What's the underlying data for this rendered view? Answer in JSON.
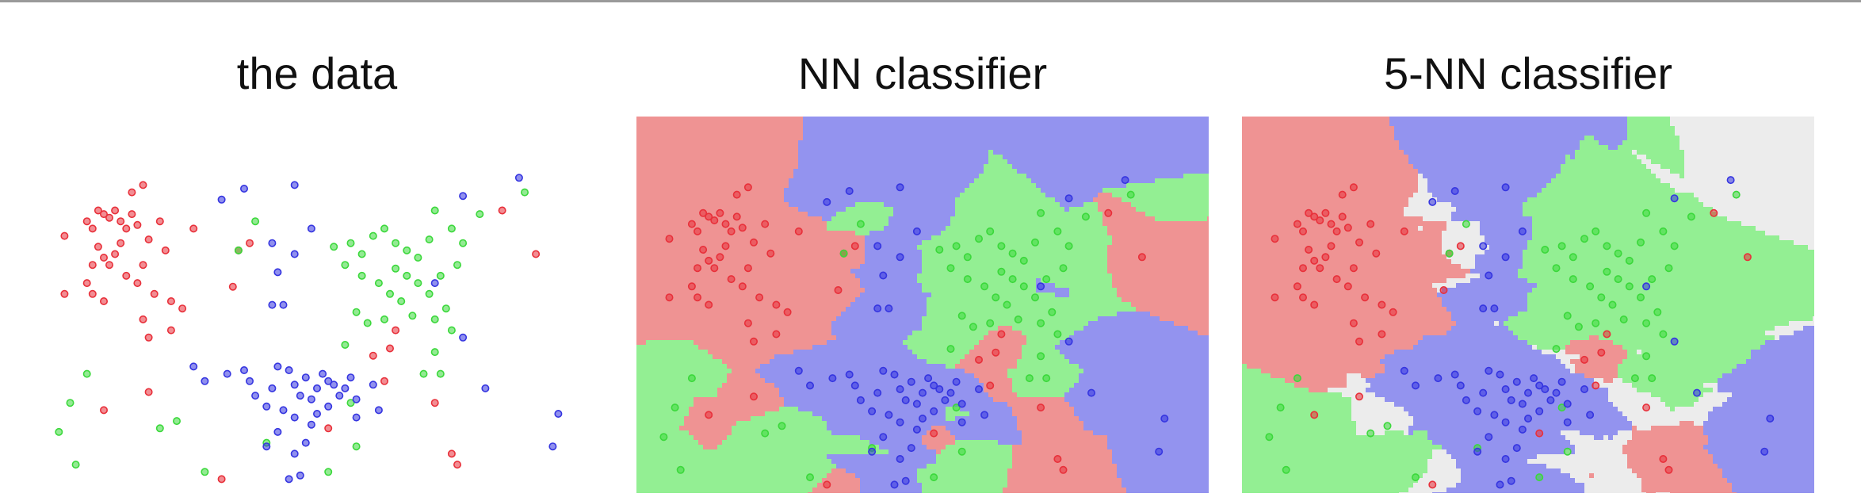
{
  "panels": [
    {
      "title": "the data"
    },
    {
      "title": "NN classifier"
    },
    {
      "title": "5-NN classifier"
    }
  ],
  "colors": {
    "red": "#e8303a",
    "green": "#3bd83b",
    "blue": "#3535e0",
    "region_red": "#ef9393",
    "region_green": "#93ef93",
    "region_blue": "#9393ef",
    "region_undecided": "#ececec"
  },
  "chart_data": [
    {
      "type": "scatter",
      "title": "the data",
      "series": [
        {
          "points": [
            [
              0.05,
              0.68
            ],
            [
              0.11,
              0.75
            ],
            [
              0.12,
              0.74
            ],
            [
              0.09,
              0.72
            ],
            [
              0.1,
              0.7
            ],
            [
              0.13,
              0.73
            ],
            [
              0.14,
              0.75
            ],
            [
              0.15,
              0.72
            ],
            [
              0.16,
              0.7
            ],
            [
              0.17,
              0.74
            ],
            [
              0.18,
              0.71
            ],
            [
              0.11,
              0.65
            ],
            [
              0.12,
              0.62
            ],
            [
              0.13,
              0.6
            ],
            [
              0.14,
              0.63
            ],
            [
              0.15,
              0.66
            ],
            [
              0.1,
              0.6
            ],
            [
              0.09,
              0.55
            ],
            [
              0.1,
              0.52
            ],
            [
              0.12,
              0.5
            ],
            [
              0.16,
              0.57
            ],
            [
              0.18,
              0.55
            ],
            [
              0.19,
              0.6
            ],
            [
              0.2,
              0.67
            ],
            [
              0.22,
              0.72
            ],
            [
              0.23,
              0.64
            ],
            [
              0.21,
              0.52
            ],
            [
              0.24,
              0.5
            ],
            [
              0.19,
              0.45
            ],
            [
              0.2,
              0.4
            ],
            [
              0.24,
              0.42
            ],
            [
              0.26,
              0.48
            ],
            [
              0.28,
              0.7
            ],
            [
              0.36,
              0.64
            ],
            [
              0.38,
              0.66
            ],
            [
              0.05,
              0.52
            ],
            [
              0.35,
              0.54
            ],
            [
              0.52,
              0.15
            ],
            [
              0.6,
              0.35
            ],
            [
              0.62,
              0.28
            ],
            [
              0.63,
              0.37
            ],
            [
              0.64,
              0.42
            ],
            [
              0.71,
              0.22
            ],
            [
              0.75,
              0.05
            ],
            [
              0.74,
              0.08
            ],
            [
              0.12,
              0.2
            ],
            [
              0.33,
              0.01
            ],
            [
              0.2,
              0.25
            ],
            [
              0.89,
              0.63
            ],
            [
              0.83,
              0.75
            ],
            [
              0.19,
              0.82
            ],
            [
              0.17,
              0.8
            ]
          ]
        },
        {
          "points": [
            [
              0.36,
              0.64
            ],
            [
              0.39,
              0.72
            ],
            [
              0.53,
              0.65
            ],
            [
              0.56,
              0.66
            ],
            [
              0.55,
              0.6
            ],
            [
              0.58,
              0.63
            ],
            [
              0.6,
              0.68
            ],
            [
              0.62,
              0.7
            ],
            [
              0.64,
              0.66
            ],
            [
              0.66,
              0.64
            ],
            [
              0.68,
              0.62
            ],
            [
              0.7,
              0.67
            ],
            [
              0.71,
              0.75
            ],
            [
              0.58,
              0.57
            ],
            [
              0.61,
              0.55
            ],
            [
              0.64,
              0.59
            ],
            [
              0.66,
              0.57
            ],
            [
              0.63,
              0.52
            ],
            [
              0.65,
              0.5
            ],
            [
              0.68,
              0.55
            ],
            [
              0.7,
              0.52
            ],
            [
              0.72,
              0.57
            ],
            [
              0.67,
              0.46
            ],
            [
              0.71,
              0.45
            ],
            [
              0.74,
              0.42
            ],
            [
              0.57,
              0.47
            ],
            [
              0.59,
              0.44
            ],
            [
              0.62,
              0.45
            ],
            [
              0.73,
              0.48
            ],
            [
              0.75,
              0.6
            ],
            [
              0.76,
              0.66
            ],
            [
              0.74,
              0.7
            ],
            [
              0.79,
              0.74
            ],
            [
              0.87,
              0.8
            ],
            [
              0.72,
              0.3
            ],
            [
              0.69,
              0.3
            ],
            [
              0.71,
              0.36
            ],
            [
              0.55,
              0.38
            ],
            [
              0.09,
              0.3
            ],
            [
              0.04,
              0.14
            ],
            [
              0.07,
              0.05
            ],
            [
              0.06,
              0.22
            ],
            [
              0.25,
              0.17
            ],
            [
              0.22,
              0.15
            ],
            [
              0.3,
              0.03
            ],
            [
              0.41,
              0.11
            ],
            [
              0.56,
              0.22
            ],
            [
              0.57,
              0.1
            ],
            [
              0.52,
              0.03
            ]
          ]
        },
        {
          "points": [
            [
              0.33,
              0.78
            ],
            [
              0.37,
              0.81
            ],
            [
              0.46,
              0.82
            ],
            [
              0.42,
              0.66
            ],
            [
              0.49,
              0.7
            ],
            [
              0.46,
              0.63
            ],
            [
              0.43,
              0.58
            ],
            [
              0.44,
              0.49
            ],
            [
              0.42,
              0.49
            ],
            [
              0.86,
              0.84
            ],
            [
              0.76,
              0.79
            ],
            [
              0.71,
              0.55
            ],
            [
              0.38,
              0.28
            ],
            [
              0.42,
              0.26
            ],
            [
              0.43,
              0.32
            ],
            [
              0.45,
              0.31
            ],
            [
              0.46,
              0.27
            ],
            [
              0.47,
              0.24
            ],
            [
              0.48,
              0.29
            ],
            [
              0.49,
              0.23
            ],
            [
              0.5,
              0.26
            ],
            [
              0.51,
              0.3
            ],
            [
              0.52,
              0.28
            ],
            [
              0.53,
              0.27
            ],
            [
              0.54,
              0.24
            ],
            [
              0.55,
              0.26
            ],
            [
              0.56,
              0.29
            ],
            [
              0.52,
              0.21
            ],
            [
              0.5,
              0.19
            ],
            [
              0.49,
              0.16
            ],
            [
              0.46,
              0.18
            ],
            [
              0.44,
              0.2
            ],
            [
              0.41,
              0.21
            ],
            [
              0.43,
              0.14
            ],
            [
              0.48,
              0.11
            ],
            [
              0.46,
              0.08
            ],
            [
              0.39,
              0.24
            ],
            [
              0.41,
              0.1
            ],
            [
              0.47,
              0.02
            ],
            [
              0.45,
              0.01
            ],
            [
              0.57,
              0.23
            ],
            [
              0.6,
              0.27
            ],
            [
              0.61,
              0.2
            ],
            [
              0.28,
              0.32
            ],
            [
              0.3,
              0.28
            ],
            [
              0.34,
              0.3
            ],
            [
              0.37,
              0.31
            ],
            [
              0.76,
              0.4
            ],
            [
              0.8,
              0.26
            ],
            [
              0.93,
              0.19
            ],
            [
              0.92,
              0.1
            ],
            [
              0.57,
              0.18
            ]
          ]
        }
      ]
    },
    {
      "type": "scatter",
      "title": "NN classifier"
    },
    {
      "type": "scatter",
      "title": "5-NN classifier"
    }
  ]
}
